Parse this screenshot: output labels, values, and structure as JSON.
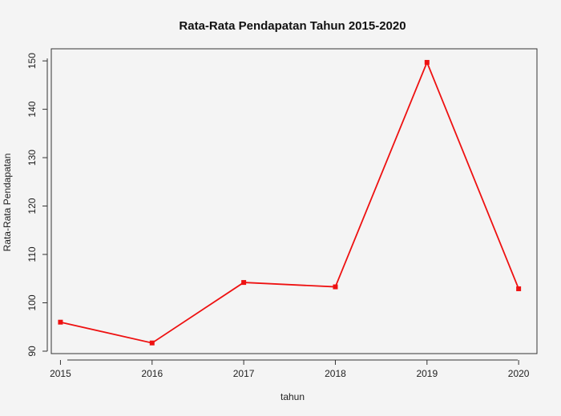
{
  "chart_data": {
    "type": "line",
    "title": "Rata-Rata Pendapatan Tahun 2015-2020",
    "xlabel": "tahun",
    "ylabel": "Rata-Rata Pendapatan",
    "x": [
      2015,
      2016,
      2017,
      2018,
      2019,
      2020
    ],
    "x_tick_labels": [
      "2015",
      "2016",
      "2017",
      "2018",
      "2019",
      "2020"
    ],
    "y_ticks": [
      90,
      100,
      110,
      120,
      130,
      140,
      150
    ],
    "y_tick_labels": [
      "90",
      "100",
      "110",
      "120",
      "130",
      "140",
      "150"
    ],
    "xlim": [
      2014.9,
      2020.2
    ],
    "ylim": [
      89.5,
      152.5
    ],
    "grid": false,
    "series": [
      {
        "values": [
          96.0,
          91.7,
          104.2,
          103.3,
          149.7,
          102.9
        ],
        "color": "#ee1111",
        "marker": "square"
      }
    ]
  }
}
